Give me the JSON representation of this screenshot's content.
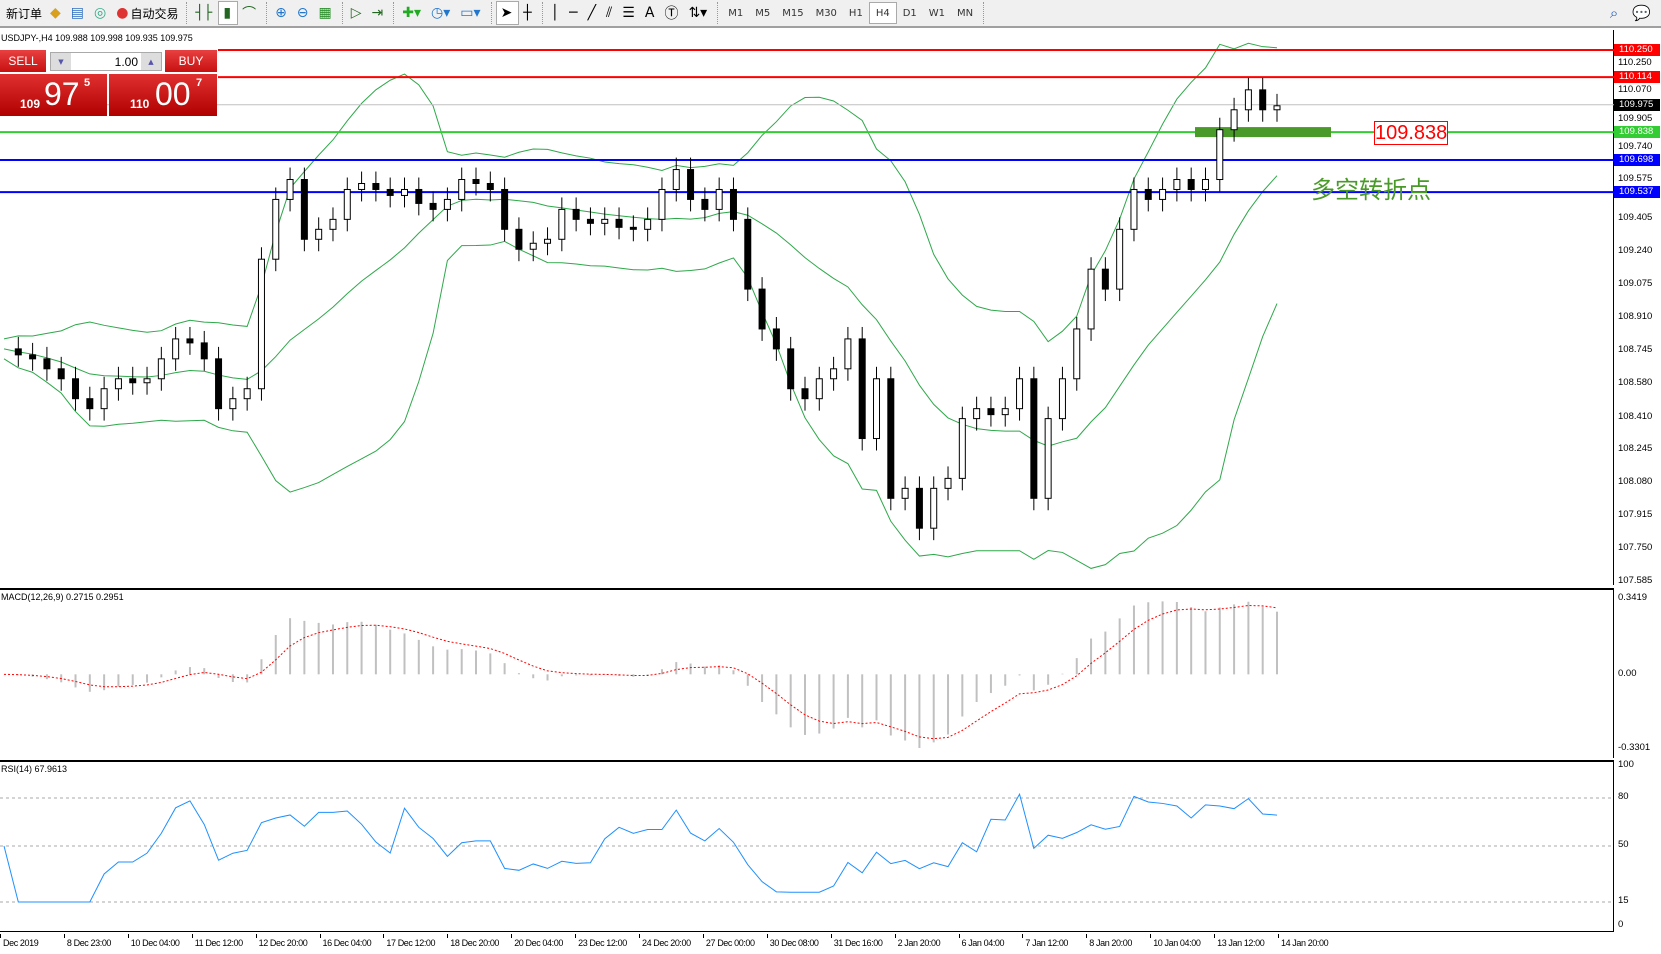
{
  "toolbar": {
    "new_order": "新订单",
    "auto_trading": "自动交易",
    "timeframes": [
      "M1",
      "M5",
      "M15",
      "M30",
      "H1",
      "H4",
      "D1",
      "W1",
      "MN"
    ],
    "active_timeframe": "H4"
  },
  "chart": {
    "header": "USDJPY-,H4  109.988 109.998 109.935 109.975",
    "price_axis": [
      "110.250",
      "110.070",
      "109.905",
      "109.740",
      "109.575",
      "109.405",
      "109.240",
      "109.075",
      "108.910",
      "108.745",
      "108.580",
      "108.410",
      "108.245",
      "108.080",
      "107.915",
      "107.750",
      "107.585"
    ],
    "price_range": [
      107.585,
      110.25
    ],
    "levels": [
      {
        "price": 110.25,
        "label": "110.250",
        "color": "#ff0000"
      },
      {
        "price": 110.114,
        "label": "110.114",
        "color": "#ff0000"
      },
      {
        "price": 109.975,
        "label": "109.975",
        "color": "#000000",
        "bid": true
      },
      {
        "price": 109.838,
        "label": "109.838",
        "color": "#33cc33"
      },
      {
        "price": 109.698,
        "label": "109.698",
        "color": "#0000ff"
      },
      {
        "price": 109.537,
        "label": "109.537",
        "color": "#0000ff"
      }
    ],
    "level_box": "109.838",
    "annotation": "多空转折点",
    "closes": [
      108.75,
      108.72,
      108.7,
      108.65,
      108.6,
      108.5,
      108.45,
      108.55,
      108.6,
      108.58,
      108.6,
      108.7,
      108.8,
      108.78,
      108.7,
      108.45,
      108.5,
      108.55,
      109.2,
      109.5,
      109.6,
      109.3,
      109.35,
      109.4,
      109.55,
      109.58,
      109.55,
      109.52,
      109.55,
      109.48,
      109.45,
      109.5,
      109.6,
      109.58,
      109.55,
      109.35,
      109.25,
      109.28,
      109.3,
      109.45,
      109.4,
      109.38,
      109.4,
      109.36,
      109.35,
      109.4,
      109.55,
      109.65,
      109.5,
      109.45,
      109.55,
      109.4,
      109.05,
      108.85,
      108.75,
      108.55,
      108.5,
      108.6,
      108.65,
      108.8,
      108.3,
      108.6,
      108.0,
      108.05,
      107.85,
      108.05,
      108.1,
      108.4,
      108.45,
      108.42,
      108.45,
      108.6,
      108.0,
      108.4,
      108.6,
      108.85,
      109.15,
      109.05,
      109.35,
      109.55,
      109.5,
      109.55,
      109.6,
      109.55,
      109.6,
      109.85,
      109.95,
      110.05,
      109.95,
      109.97
    ]
  },
  "trade_panel": {
    "sell": "SELL",
    "buy": "BUY",
    "lot": "1.00",
    "bid_big": "97",
    "bid_small": "109",
    "bid_sup": "5",
    "ask_big": "00",
    "ask_small": "110",
    "ask_sup": "7"
  },
  "macd": {
    "label": "MACD(12,26,9) 0.2715 0.2951",
    "axis": [
      "0.3419",
      "0.00",
      "-0.3301"
    ],
    "range": [
      -0.3301,
      0.3419
    ]
  },
  "rsi": {
    "label": "RSI(14) 67.9613",
    "axis": [
      "100",
      "80",
      "50",
      "15",
      "0"
    ],
    "levels": [
      80,
      50,
      15
    ]
  },
  "dates": [
    "Dec 2019",
    "8 Dec 23:00",
    "10 Dec 04:00",
    "11 Dec 12:00",
    "12 Dec 20:00",
    "16 Dec 04:00",
    "17 Dec 12:00",
    "18 Dec 20:00",
    "20 Dec 04:00",
    "23 Dec 12:00",
    "24 Dec 20:00",
    "27 Dec 00:00",
    "30 Dec 08:00",
    "31 Dec 16:00",
    "2 Jan 20:00",
    "6 Jan 04:00",
    "7 Jan 12:00",
    "8 Jan 20:00",
    "10 Jan 04:00",
    "13 Jan 12:00",
    "14 Jan 20:00"
  ],
  "colors": {
    "bands": "#2ea84a",
    "signal": "#ff0000",
    "histogram": "#c0c0c0",
    "rsi": "#1e90ff"
  }
}
